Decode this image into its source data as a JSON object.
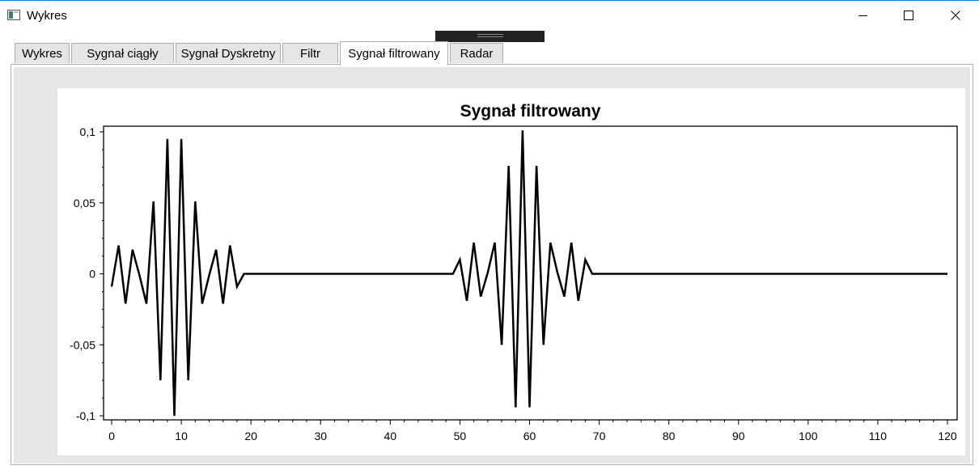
{
  "window": {
    "title": "Wykres",
    "controls": {
      "minimize_icon": "minimize-icon",
      "maximize_icon": "maximize-icon",
      "close_icon": "close-icon"
    }
  },
  "tabs": [
    {
      "label": "Wykres",
      "active": false
    },
    {
      "label": "Sygnał ciągły",
      "active": false
    },
    {
      "label": "Sygnał Dyskretny",
      "active": false
    },
    {
      "label": "Filtr",
      "active": false
    },
    {
      "label": "Sygnał filtrowany",
      "active": true
    },
    {
      "label": "Radar",
      "active": false
    }
  ],
  "chart_data": {
    "type": "line",
    "title": "Sygnał filtrowany",
    "xlabel": "",
    "ylabel": "",
    "xlim": [
      0,
      120
    ],
    "ylim": [
      -0.1,
      0.1
    ],
    "x_ticks": [
      0,
      10,
      20,
      30,
      40,
      50,
      60,
      70,
      80,
      90,
      100,
      110,
      120
    ],
    "y_ticks": [
      0.1,
      0.05,
      0,
      -0.05,
      -0.1
    ],
    "y_tick_labels": [
      "0,1",
      "0,05",
      "0",
      "-0,05",
      "-0,1"
    ],
    "grid": false,
    "line_color": "#000000",
    "series": [
      {
        "x": [
          0,
          1,
          2,
          3,
          4,
          5,
          6,
          7,
          8,
          9,
          10,
          11,
          12,
          13,
          14,
          15,
          16,
          17,
          18,
          19,
          20,
          49,
          50,
          51,
          52,
          53,
          54,
          55,
          56,
          57,
          58,
          59,
          60,
          61,
          62,
          63,
          64,
          65,
          66,
          67,
          68,
          69,
          120
        ],
        "y": [
          -0.009,
          0.02,
          -0.021,
          0.017,
          -0.001,
          -0.021,
          0.051,
          -0.075,
          0.095,
          -0.1,
          0.095,
          -0.075,
          0.051,
          -0.021,
          -0.001,
          0.017,
          -0.021,
          0.02,
          -0.009,
          0,
          0,
          0,
          0.01,
          -0.019,
          0.022,
          -0.016,
          0.001,
          0.022,
          -0.05,
          0.076,
          -0.094,
          0.101,
          -0.094,
          0.076,
          -0.05,
          0.022,
          0.001,
          -0.016,
          0.022,
          -0.019,
          0.01,
          0,
          0
        ]
      }
    ]
  }
}
